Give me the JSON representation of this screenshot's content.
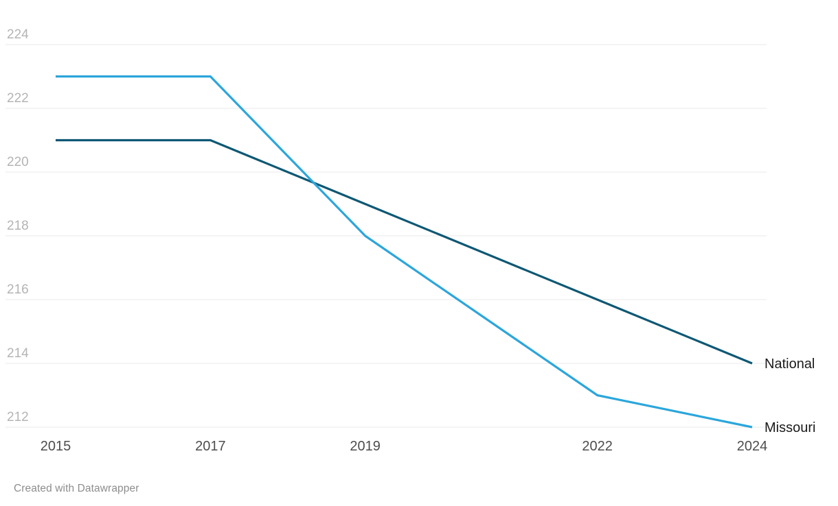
{
  "chart_data": {
    "type": "line",
    "x": [
      2015,
      2017,
      2019,
      2022,
      2024
    ],
    "x_tick_labels": [
      "2015",
      "2017",
      "2019",
      "2022",
      "2024"
    ],
    "series": [
      {
        "name": "National",
        "color": "#0e5874",
        "label_color": "#1a1a1a",
        "values": [
          221,
          221,
          219,
          216,
          214
        ]
      },
      {
        "name": "Missouri",
        "color": "#2ba6dc",
        "label_color": "#1a1a1a",
        "values": [
          223,
          223,
          218,
          213,
          212
        ]
      }
    ],
    "y_ticks": [
      212,
      214,
      216,
      218,
      220,
      222,
      224
    ],
    "y_range": [
      212,
      224
    ],
    "x_range": [
      2015,
      2024
    ],
    "grid": "horizontal",
    "legend": "direct-labels-right",
    "title": "",
    "xlabel": "",
    "ylabel": ""
  },
  "colors": {
    "background": "#ffffff",
    "gridline": "#e9e9e9",
    "y_tick_label": "#b4b4b4",
    "x_tick_label": "#4d4d4d"
  },
  "footer": {
    "credit": "Created with Datawrapper"
  }
}
